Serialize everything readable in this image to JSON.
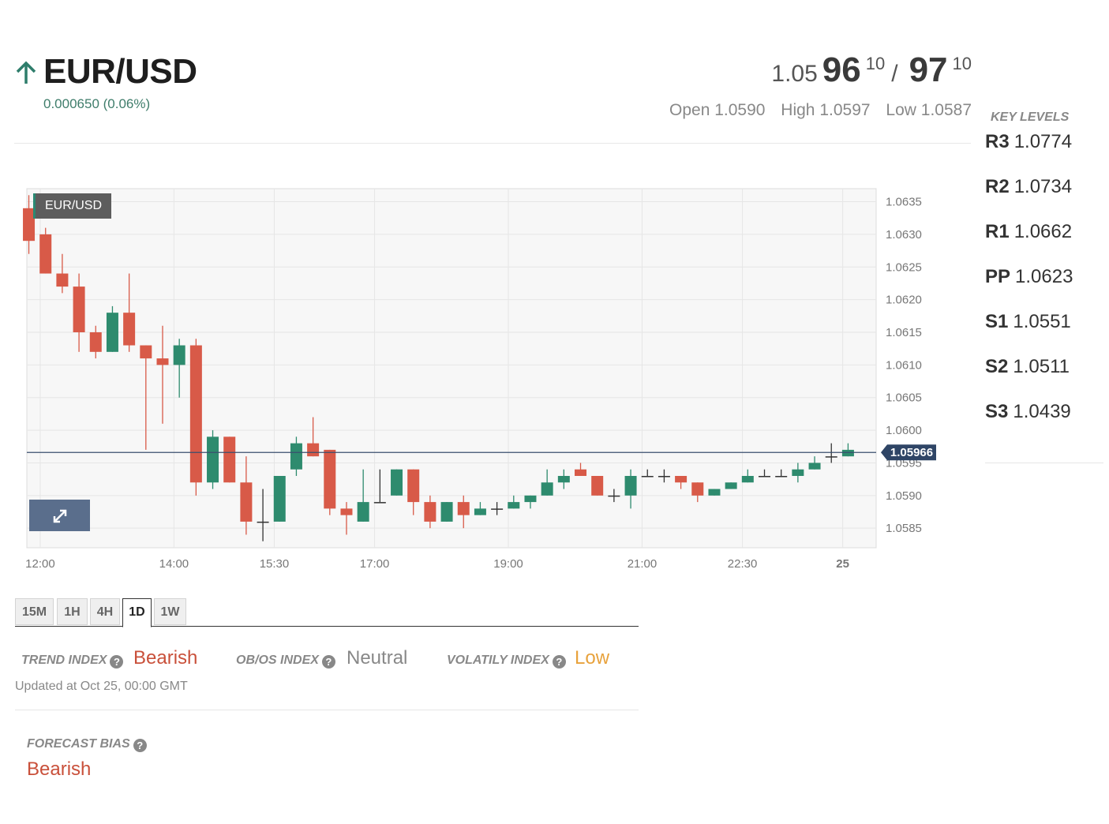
{
  "header": {
    "pair": "EUR/USD",
    "change": "0.000650 (0.06%)",
    "arrow_icon": "arrow-up-icon",
    "up_color": "#2e7d6b",
    "bid": {
      "prefix": "1.05",
      "big": "96",
      "pip": "10"
    },
    "ask": {
      "big": "97",
      "pip": "10"
    },
    "separator": "/",
    "open": "Open 1.0590",
    "high": "High 1.0597",
    "low": "Low 1.0587"
  },
  "key_levels": {
    "title": "KEY LEVELS",
    "items": [
      {
        "name": "R3",
        "value": "1.0774"
      },
      {
        "name": "R2",
        "value": "1.0734"
      },
      {
        "name": "R1",
        "value": "1.0662"
      },
      {
        "name": "PP",
        "value": "1.0623"
      },
      {
        "name": "S1",
        "value": "1.0551"
      },
      {
        "name": "S2",
        "value": "1.0511"
      },
      {
        "name": "S3",
        "value": "1.0439"
      }
    ]
  },
  "chart_label": "EUR/USD",
  "expand_icon": "expand-icon",
  "chart_data": {
    "type": "candlestick",
    "up_color": "#2e8b6e",
    "down_color": "#d85a48",
    "ylim": [
      1.0582,
      1.0637
    ],
    "y_ticks": [
      "1.0635",
      "1.0630",
      "1.0625",
      "1.0620",
      "1.0615",
      "1.0610",
      "1.0605",
      "1.0600",
      "1.0595",
      "1.0590",
      "1.0585"
    ],
    "y_tick_values": [
      1.0635,
      1.063,
      1.0625,
      1.062,
      1.0615,
      1.061,
      1.0605,
      1.06,
      1.0595,
      1.059,
      1.0585
    ],
    "x_ticks": [
      "12:00",
      "14:00",
      "15:30",
      "17:00",
      "19:00",
      "21:00",
      "22:30",
      "25"
    ],
    "x_tick_hours": [
      12,
      14,
      15.5,
      17,
      19,
      21,
      22.5,
      24
    ],
    "x_range_hours": [
      11.8,
      24.5
    ],
    "current_price": "1.05966",
    "current_price_value": 1.05966,
    "candles": [
      {
        "t": 11.83,
        "o": 1.0634,
        "h": 1.0636,
        "l": 1.0627,
        "c": 1.0629
      },
      {
        "t": 12.08,
        "o": 1.063,
        "h": 1.0631,
        "l": 1.0624,
        "c": 1.0624
      },
      {
        "t": 12.33,
        "o": 1.0624,
        "h": 1.0627,
        "l": 1.0621,
        "c": 1.0622
      },
      {
        "t": 12.58,
        "o": 1.0622,
        "h": 1.0624,
        "l": 1.0612,
        "c": 1.0615
      },
      {
        "t": 12.83,
        "o": 1.0615,
        "h": 1.0616,
        "l": 1.0611,
        "c": 1.0612
      },
      {
        "t": 13.08,
        "o": 1.0612,
        "h": 1.0619,
        "l": 1.0612,
        "c": 1.0618
      },
      {
        "t": 13.33,
        "o": 1.0618,
        "h": 1.0624,
        "l": 1.0612,
        "c": 1.0613
      },
      {
        "t": 13.58,
        "o": 1.0613,
        "h": 1.0613,
        "l": 1.0597,
        "c": 1.0611
      },
      {
        "t": 13.83,
        "o": 1.0611,
        "h": 1.0616,
        "l": 1.0601,
        "c": 1.061
      },
      {
        "t": 14.08,
        "o": 1.061,
        "h": 1.0614,
        "l": 1.0605,
        "c": 1.0613
      },
      {
        "t": 14.33,
        "o": 1.0613,
        "h": 1.0614,
        "l": 1.059,
        "c": 1.0592
      },
      {
        "t": 14.58,
        "o": 1.0592,
        "h": 1.06,
        "l": 1.0591,
        "c": 1.0599
      },
      {
        "t": 14.83,
        "o": 1.0599,
        "h": 1.0599,
        "l": 1.0592,
        "c": 1.0592
      },
      {
        "t": 15.08,
        "o": 1.0592,
        "h": 1.0596,
        "l": 1.0584,
        "c": 1.0586
      },
      {
        "t": 15.33,
        "o": 1.0586,
        "h": 1.0591,
        "l": 1.0583,
        "c": 1.0586
      },
      {
        "t": 15.58,
        "o": 1.0586,
        "h": 1.0593,
        "l": 1.0586,
        "c": 1.0593
      },
      {
        "t": 15.83,
        "o": 1.0594,
        "h": 1.0599,
        "l": 1.0593,
        "c": 1.0598
      },
      {
        "t": 16.08,
        "o": 1.0598,
        "h": 1.0602,
        "l": 1.0596,
        "c": 1.0596
      },
      {
        "t": 16.33,
        "o": 1.0597,
        "h": 1.0597,
        "l": 1.0587,
        "c": 1.0588
      },
      {
        "t": 16.58,
        "o": 1.0588,
        "h": 1.0589,
        "l": 1.0584,
        "c": 1.0587
      },
      {
        "t": 16.83,
        "o": 1.0586,
        "h": 1.0594,
        "l": 1.0586,
        "c": 1.0589
      },
      {
        "t": 17.08,
        "o": 1.0589,
        "h": 1.0594,
        "l": 1.0589,
        "c": 1.0589
      },
      {
        "t": 17.33,
        "o": 1.059,
        "h": 1.0594,
        "l": 1.059,
        "c": 1.0594
      },
      {
        "t": 17.58,
        "o": 1.0594,
        "h": 1.0594,
        "l": 1.0587,
        "c": 1.0589
      },
      {
        "t": 17.83,
        "o": 1.0589,
        "h": 1.059,
        "l": 1.0585,
        "c": 1.0586
      },
      {
        "t": 18.08,
        "o": 1.0586,
        "h": 1.0589,
        "l": 1.0586,
        "c": 1.0589
      },
      {
        "t": 18.33,
        "o": 1.0589,
        "h": 1.059,
        "l": 1.0585,
        "c": 1.0587
      },
      {
        "t": 18.58,
        "o": 1.0587,
        "h": 1.0589,
        "l": 1.0587,
        "c": 1.0588
      },
      {
        "t": 18.83,
        "o": 1.0588,
        "h": 1.0589,
        "l": 1.0587,
        "c": 1.0588
      },
      {
        "t": 19.08,
        "o": 1.0588,
        "h": 1.059,
        "l": 1.0588,
        "c": 1.0589
      },
      {
        "t": 19.33,
        "o": 1.0589,
        "h": 1.059,
        "l": 1.0588,
        "c": 1.059
      },
      {
        "t": 19.58,
        "o": 1.059,
        "h": 1.0594,
        "l": 1.059,
        "c": 1.0592
      },
      {
        "t": 19.83,
        "o": 1.0592,
        "h": 1.0594,
        "l": 1.0591,
        "c": 1.0593
      },
      {
        "t": 20.08,
        "o": 1.0594,
        "h": 1.0595,
        "l": 1.0593,
        "c": 1.0593
      },
      {
        "t": 20.33,
        "o": 1.0593,
        "h": 1.0593,
        "l": 1.059,
        "c": 1.059
      },
      {
        "t": 20.58,
        "o": 1.059,
        "h": 1.0591,
        "l": 1.0589,
        "c": 1.059
      },
      {
        "t": 20.83,
        "o": 1.059,
        "h": 1.0594,
        "l": 1.0588,
        "c": 1.0593
      },
      {
        "t": 21.08,
        "o": 1.0593,
        "h": 1.0594,
        "l": 1.0593,
        "c": 1.0593
      },
      {
        "t": 21.33,
        "o": 1.0593,
        "h": 1.0594,
        "l": 1.0592,
        "c": 1.0593
      },
      {
        "t": 21.58,
        "o": 1.0593,
        "h": 1.0593,
        "l": 1.0591,
        "c": 1.0592
      },
      {
        "t": 21.83,
        "o": 1.0592,
        "h": 1.0592,
        "l": 1.0589,
        "c": 1.059
      },
      {
        "t": 22.08,
        "o": 1.059,
        "h": 1.0591,
        "l": 1.059,
        "c": 1.0591
      },
      {
        "t": 22.33,
        "o": 1.0591,
        "h": 1.0592,
        "l": 1.0591,
        "c": 1.0592
      },
      {
        "t": 22.58,
        "o": 1.0592,
        "h": 1.0594,
        "l": 1.0592,
        "c": 1.0593
      },
      {
        "t": 22.83,
        "o": 1.0593,
        "h": 1.0594,
        "l": 1.0593,
        "c": 1.0593
      },
      {
        "t": 23.08,
        "o": 1.0593,
        "h": 1.0594,
        "l": 1.0593,
        "c": 1.0593
      },
      {
        "t": 23.33,
        "o": 1.0593,
        "h": 1.0595,
        "l": 1.0592,
        "c": 1.0594
      },
      {
        "t": 23.58,
        "o": 1.0594,
        "h": 1.0596,
        "l": 1.0594,
        "c": 1.0595
      },
      {
        "t": 23.83,
        "o": 1.0596,
        "h": 1.0598,
        "l": 1.0595,
        "c": 1.0596
      },
      {
        "t": 24.08,
        "o": 1.0596,
        "h": 1.0598,
        "l": 1.0596,
        "c": 1.0597
      }
    ]
  },
  "timeframes": {
    "tabs": [
      "15M",
      "1H",
      "4H",
      "1D",
      "1W"
    ],
    "active": "1D"
  },
  "indices": {
    "trend": {
      "label": "TREND INDEX",
      "value": "Bearish",
      "color": "#c9503a"
    },
    "obos": {
      "label": "OB/OS INDEX",
      "value": "Neutral",
      "color": "#888888"
    },
    "volatility": {
      "label": "VOLATILY INDEX",
      "value": "Low",
      "color": "#e8a23c"
    },
    "updated": "Updated at Oct 25, 00:00 GMT",
    "help_icon": "help-icon"
  },
  "forecast": {
    "label": "FORECAST BIAS",
    "value": "Bearish"
  }
}
